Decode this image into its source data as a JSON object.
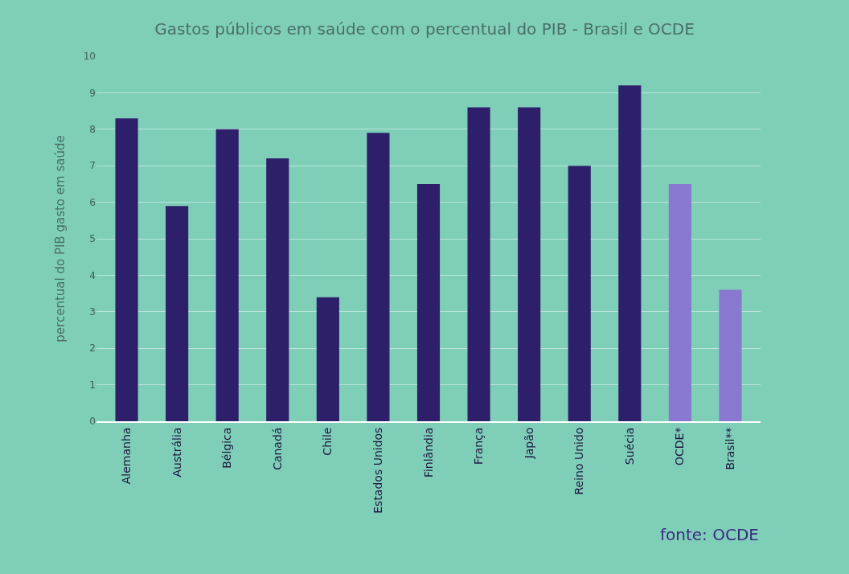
{
  "chart_data": {
    "type": "bar",
    "title": "Gastos públicos em saúde com o percentual do PIB - Brasil e OCDE",
    "ylabel": "percentual do PIB gasto em saúde",
    "categories": [
      "Alemanha",
      "Austrália",
      "Bélgica",
      "Canadá",
      "Chile",
      "Estados Unidos",
      "Finlândia",
      "França",
      "Japão",
      "Reino Unido",
      "Suécia",
      "OCDE*",
      "Brasil**"
    ],
    "values": [
      8.3,
      5.9,
      8.0,
      7.2,
      3.4,
      7.9,
      6.5,
      8.6,
      8.6,
      7.0,
      9.2,
      6.5,
      3.6
    ],
    "colors": [
      "#2e1f6b",
      "#2e1f6b",
      "#2e1f6b",
      "#2e1f6b",
      "#2e1f6b",
      "#2e1f6b",
      "#2e1f6b",
      "#2e1f6b",
      "#2e1f6b",
      "#2e1f6b",
      "#2e1f6b",
      "#8878d0",
      "#8878d0"
    ],
    "ylim": [
      0,
      10
    ],
    "yticks": [
      0,
      1,
      2,
      3,
      4,
      5,
      6,
      7,
      8,
      9,
      10
    ],
    "grid": "y",
    "annotations": [
      "fonte: OCDE"
    ]
  }
}
